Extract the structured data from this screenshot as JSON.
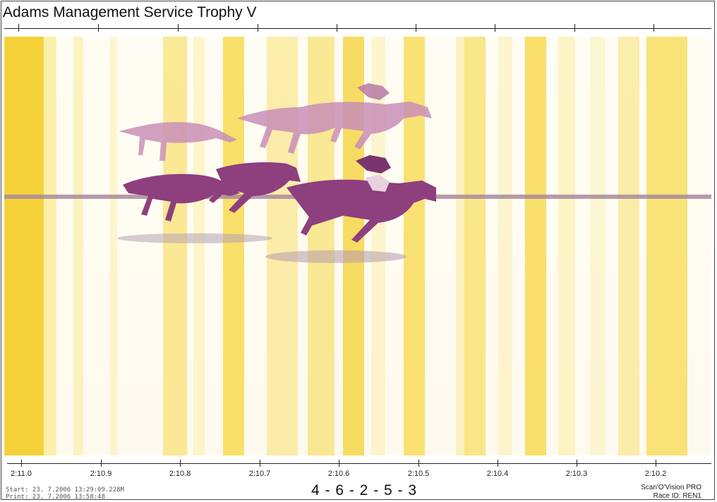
{
  "title": "Adams Management Service Trophy V",
  "axis_labels": [
    "2:11.0",
    "2:10.9",
    "2:10.8",
    "2:10.7",
    "2:10.6",
    "2:10.5",
    "2:10.4",
    "2:10.3",
    "2:10.2"
  ],
  "start_text": "Start: 23. 7.2006 13:29:09.228M",
  "print_text": "Print: 23. 7.2006 13:58:48",
  "finish_order": "4 - 6 - 2 - 5 - 3",
  "brand": "Scan'O'Vision PRO",
  "race_id": "Race ID: REN1",
  "colors": {
    "stripe_yellow": "#f7dc4a",
    "horse_purple": "#8e3f7e",
    "horse_light": "#c98fb7",
    "finish_line": "#a98a9c"
  }
}
